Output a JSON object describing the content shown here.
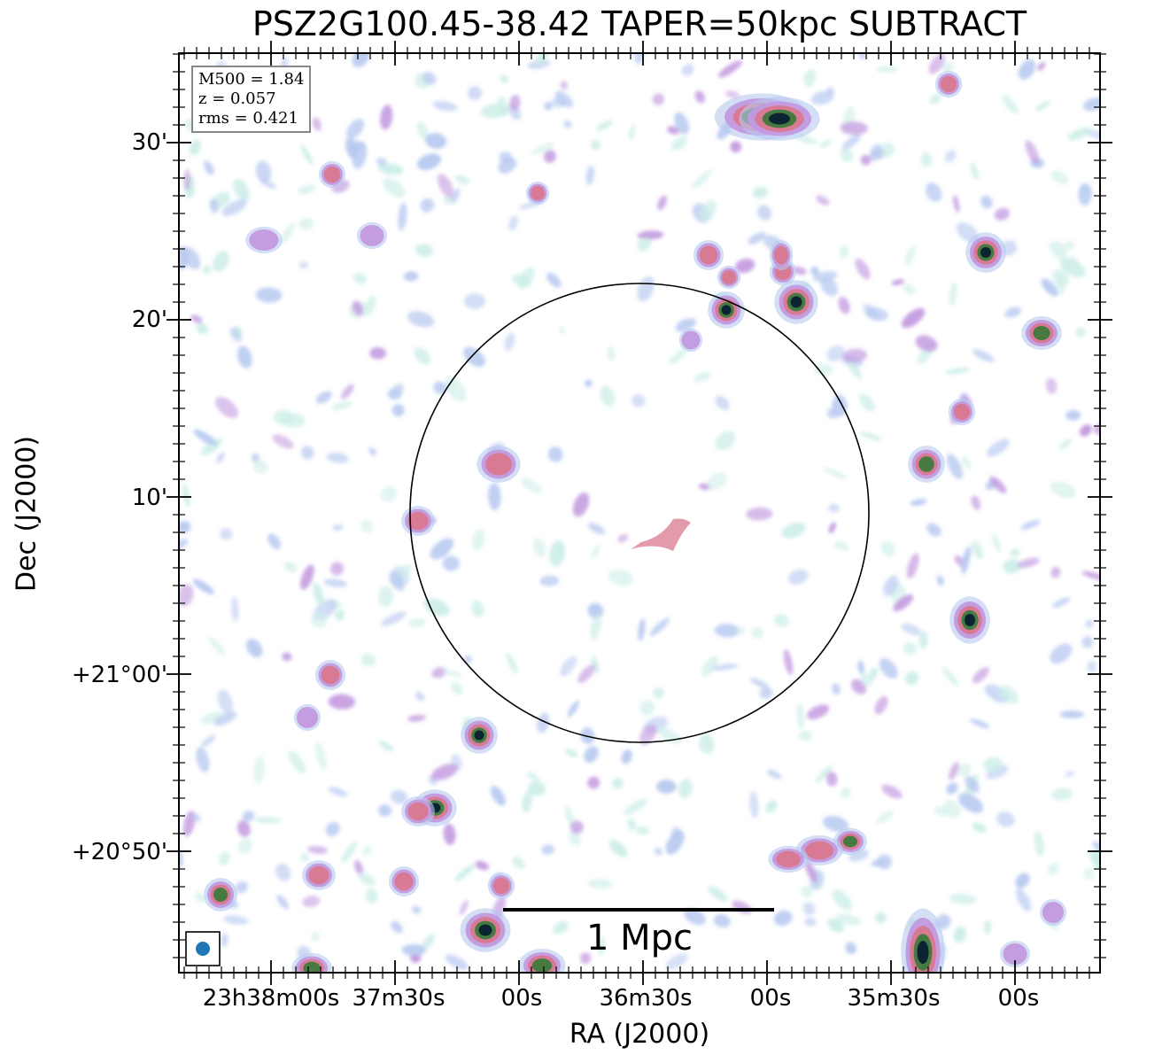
{
  "title": "PSZ2G100.45-38.42 TAPER=50kpc SUBTRACT",
  "xlabel": "RA (J2000)",
  "ylabel": "Dec (J2000)",
  "yticks": [
    "30'",
    "20'",
    "10'",
    "+21°00'",
    "+20°50'"
  ],
  "xticks": [
    "23h38m00s",
    "37m30s",
    "00s",
    "36m30s",
    "00s",
    "35m30s",
    "00s"
  ],
  "info": {
    "mass": "M500 = 1.84",
    "redshift": "z = 0.057",
    "rms": "rms = 0.421"
  },
  "scalebar": {
    "label": "1 Mpc"
  },
  "colors": {
    "colormap": [
      "#ffffff",
      "#cdeee8",
      "#b7c9f0",
      "#c39ae0",
      "#d9788e",
      "#3e7a3c",
      "#082030"
    ],
    "beam": "#1f77b4",
    "circle": "#000000"
  }
}
